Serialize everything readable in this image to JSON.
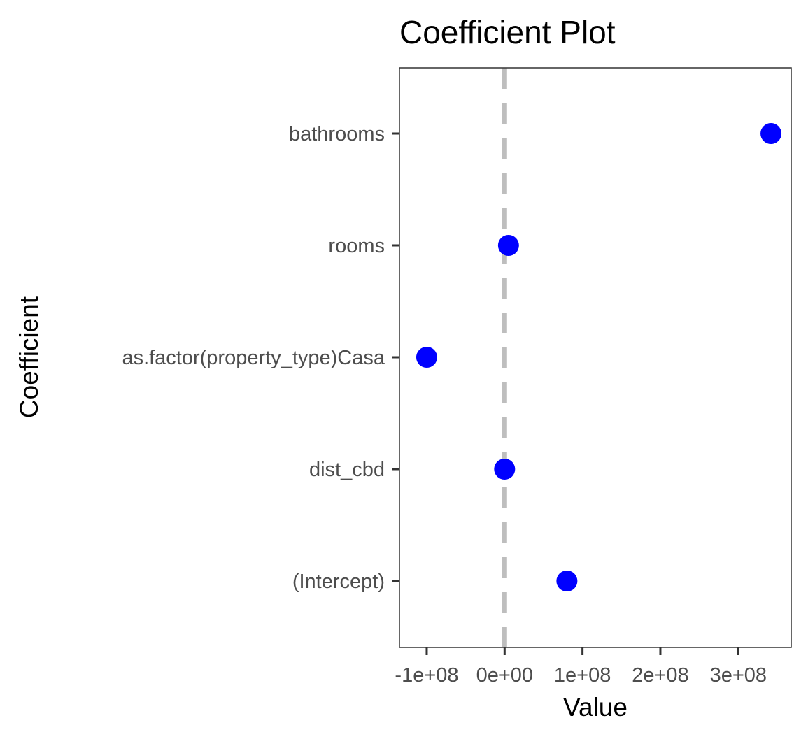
{
  "chart_data": {
    "type": "scatter",
    "title": "Coefficient Plot",
    "xlabel": "Value",
    "ylabel": "Coefficient",
    "categories": [
      "(Intercept)",
      "dist_cbd",
      "as.factor(property_type)Casa",
      "rooms",
      "bathrooms"
    ],
    "values": [
      80000000,
      0,
      -100000000,
      5000000,
      342000000
    ],
    "x_ticks": [
      -100000000,
      0,
      100000000,
      200000000,
      300000000
    ],
    "x_tick_labels": [
      "-1e+08",
      "0e+00",
      "1e+08",
      "2e+08",
      "3e+08"
    ],
    "xlim": [
      -135000000,
      368000000
    ],
    "reference_line": {
      "x": 0,
      "style": "dashed",
      "color": "#bebebe"
    },
    "grid": false,
    "point_color": "#0000ff"
  }
}
